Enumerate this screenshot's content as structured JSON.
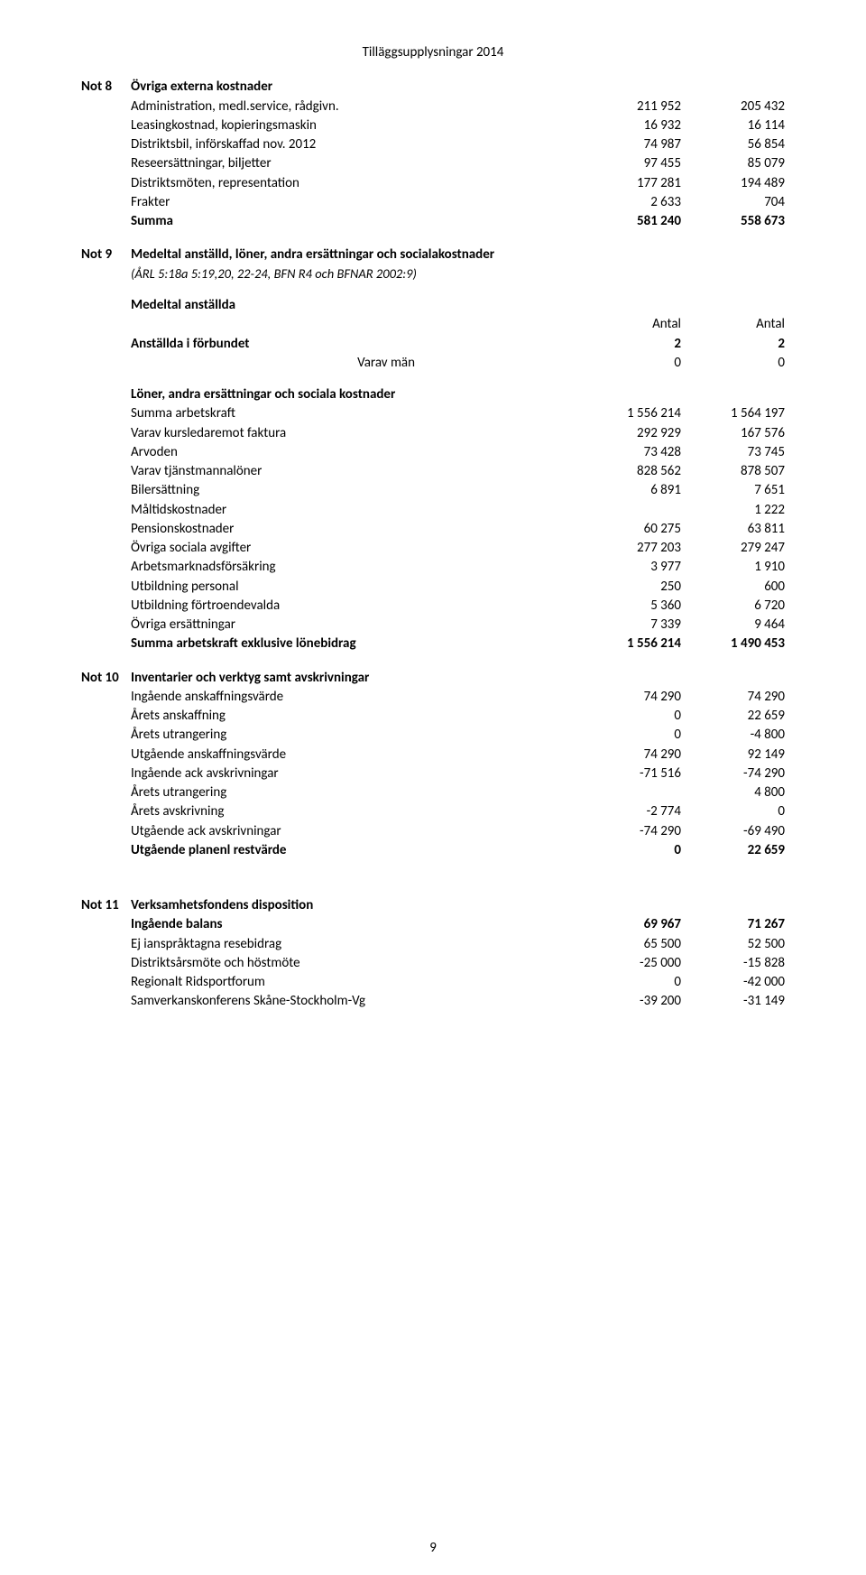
{
  "doc_title": "Tilläggsupplysningar 2014",
  "page_number": "9",
  "not8": {
    "note": "Not 8",
    "heading": "Övriga externa kostnader",
    "rows": [
      {
        "label": "Administration, medl.service, rådgivn.",
        "c1": "211 952",
        "c2": "205 432"
      },
      {
        "label": "Leasingkostnad, kopieringsmaskin",
        "c1": "16 932",
        "c2": "16 114"
      },
      {
        "label": "Distriktsbil, införskaffad nov. 2012",
        "c1": "74 987",
        "c2": "56 854"
      },
      {
        "label": "Reseersättningar, biljetter",
        "c1": "97 455",
        "c2": "85 079"
      },
      {
        "label": "Distriktsmöten, representation",
        "c1": "177 281",
        "c2": "194 489"
      },
      {
        "label": "Frakter",
        "c1": "2 633",
        "c2": "704"
      }
    ],
    "sum": {
      "label": "Summa",
      "c1": "581 240",
      "c2": "558 673"
    }
  },
  "not9": {
    "note": "Not 9",
    "heading": "Medeltal anställd, löner, andra ersättningar och socialakostnader",
    "sub": "(ÅRL 5:18a 5:19,20, 22-24, BFN R4 och BFNAR 2002:9)",
    "sec1": {
      "heading": "Medeltal anställda",
      "col_hdr": "Antal",
      "rows": [
        {
          "label": "Anställda i förbundet",
          "c1": "2",
          "c2": "2",
          "bold": true
        },
        {
          "label": "Varav män",
          "c1": "0",
          "c2": "0",
          "bold": false,
          "right_align_label": true
        }
      ]
    },
    "sec2": {
      "heading": "Löner, andra ersättningar och sociala kostnader",
      "rows": [
        {
          "label": "Summa arbetskraft",
          "c1": "1 556 214",
          "c2": "1 564 197"
        },
        {
          "label": "Varav kursledaremot faktura",
          "c1": "292 929",
          "c2": "167 576"
        },
        {
          "label": "Arvoden",
          "c1": "73 428",
          "c2": "73 745"
        },
        {
          "label": "Varav tjänstmannalöner",
          "c1": "828 562",
          "c2": "878 507"
        },
        {
          "label": "Bilersättning",
          "c1": "6 891",
          "c2": "7 651"
        },
        {
          "label": "Måltidskostnader",
          "c1": "",
          "c2": "1 222"
        },
        {
          "label": "Pensionskostnader",
          "c1": "60 275",
          "c2": "63 811"
        },
        {
          "label": "Övriga sociala avgifter",
          "c1": "277 203",
          "c2": "279 247"
        },
        {
          "label": "Arbetsmarknadsförsäkring",
          "c1": "3 977",
          "c2": "1 910"
        },
        {
          "label": "Utbildning personal",
          "c1": "250",
          "c2": "600"
        },
        {
          "label": "Utbildning förtroendevalda",
          "c1": "5 360",
          "c2": "6 720"
        },
        {
          "label": "Övriga ersättningar",
          "c1": "7 339",
          "c2": "9 464"
        }
      ],
      "sum": {
        "label": "Summa arbetskraft exklusive lönebidrag",
        "c1": "1 556 214",
        "c2": "1 490 453"
      }
    }
  },
  "not10": {
    "note": "Not 10",
    "heading": "Inventarier och verktyg samt avskrivningar",
    "rows": [
      {
        "label": "Ingående anskaffningsvärde",
        "c1": "74 290",
        "c2": "74 290"
      },
      {
        "label": "Årets anskaffning",
        "c1": "0",
        "c2": "22 659"
      },
      {
        "label": "Årets utrangering",
        "c1": "0",
        "c2": "-4 800"
      },
      {
        "label": "Utgående anskaffningsvärde",
        "c1": "74 290",
        "c2": "92 149"
      },
      {
        "label": "Ingående ack avskrivningar",
        "c1": "-71 516",
        "c2": "-74 290"
      },
      {
        "label": "Årets utrangering",
        "c1": "",
        "c2": "4 800"
      },
      {
        "label": "Årets avskrivning",
        "c1": "-2 774",
        "c2": "0"
      },
      {
        "label": "Utgående ack avskrivningar",
        "c1": "-74 290",
        "c2": "-69 490"
      }
    ],
    "sum": {
      "label": "Utgående planenl restvärde",
      "c1": "0",
      "c2": "22 659"
    }
  },
  "not11": {
    "note": "Not 11",
    "heading": "Verksamhetsfondens disposition",
    "rows": [
      {
        "label": "Ingående balans",
        "c1": "69 967",
        "c2": "71 267",
        "bold": true
      },
      {
        "label": "Ej ianspråktagna resebidrag",
        "c1": "65 500",
        "c2": "52 500"
      },
      {
        "label": "Distriktsårsmöte och höstmöte",
        "c1": "-25 000",
        "c2": "-15 828"
      },
      {
        "label": "Regionalt Ridsportforum",
        "c1": "0",
        "c2": "-42 000"
      },
      {
        "label": "Samverkanskonferens Skåne-Stockholm-Vg",
        "c1": "-39 200",
        "c2": "-31 149"
      }
    ]
  }
}
